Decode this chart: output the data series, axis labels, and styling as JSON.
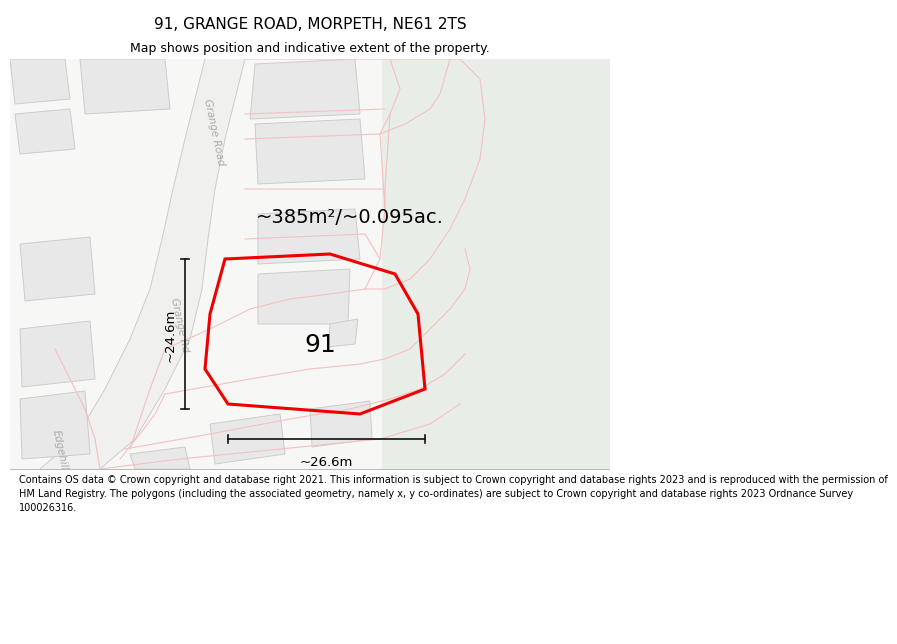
{
  "title": "91, GRANGE ROAD, MORPETH, NE61 2TS",
  "subtitle": "Map shows position and indicative extent of the property.",
  "footer_lines": [
    "Contains OS data © Crown copyright and database right 2021. This information is subject to Crown copyright and database rights 2023 and is reproduced with the permission of",
    "HM Land Registry. The polygons (including the associated geometry, namely x, y co-ordinates) are subject to Crown copyright and database rights 2023 Ordnance Survey",
    "100026316."
  ],
  "area_label": "~385m²/~0.095ac.",
  "number_label": "91",
  "dim_height": "~24.6m",
  "dim_width": "~26.6m",
  "bg_left": "#f7f7f5",
  "bg_right": "#e9ede8",
  "road_color": "#f5c0c0",
  "road_label_color": "#aaaaaa",
  "building_fill": "#e8e8e8",
  "building_edge": "#cccccc",
  "red_poly_color": "#ee0000",
  "dim_line_color": "#111111",
  "title_fontsize": 11,
  "subtitle_fontsize": 9,
  "area_fontsize": 14,
  "label_fontsize": 18,
  "dim_fontsize": 9.5,
  "footer_fontsize": 7.0
}
